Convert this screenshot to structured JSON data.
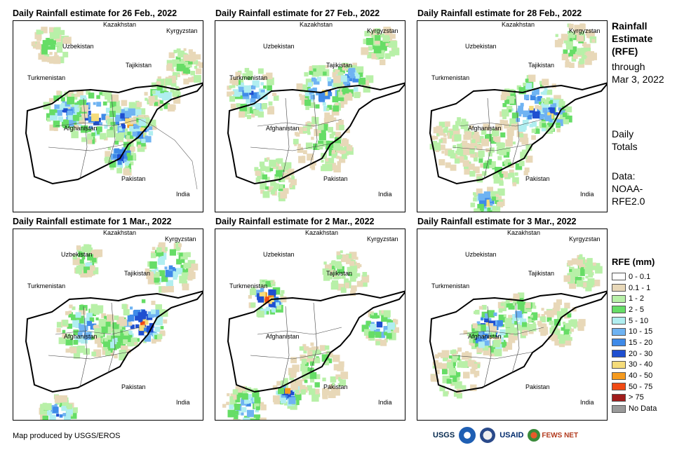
{
  "panels": [
    {
      "title": "Daily Rainfall estimate for 26 Feb., 2022"
    },
    {
      "title": "Daily Rainfall estimate for 27 Feb., 2022"
    },
    {
      "title": "Daily Rainfall estimate for 28 Feb., 2022"
    },
    {
      "title": "Daily Rainfall estimate for 1 Mar., 2022"
    },
    {
      "title": "Daily Rainfall estimate for 2 Mar., 2022"
    },
    {
      "title": "Daily Rainfall estimate for 3 Mar., 2022"
    }
  ],
  "map_labels": {
    "kazakhstan": "Kazakhstan",
    "kyrgyzstan": "Kyrgyzstan",
    "uzbekistan": "Uzbekistan",
    "tajikistan": "Tajikistan",
    "turkmenistan": "Turkmenistan",
    "afghanistan": "Afghanistan",
    "pakistan": "Pakistan",
    "india": "India"
  },
  "side": {
    "title_lines": [
      "Rainfall",
      "Estimate",
      "(RFE)"
    ],
    "through_lines": [
      "through",
      "Mar 3, 2022"
    ],
    "daily_lines": [
      "Daily",
      "Totals"
    ],
    "data_lines": [
      "Data:",
      "NOAA-",
      "RFE2.0"
    ]
  },
  "legend": {
    "title": "RFE (mm)",
    "items": [
      {
        "label": "0 - 0.1",
        "color": "#ffffff"
      },
      {
        "label": "0.1 - 1",
        "color": "#e8d8b8"
      },
      {
        "label": "1 - 2",
        "color": "#b8f0a8"
      },
      {
        "label": "2 - 5",
        "color": "#66dd66"
      },
      {
        "label": "5 - 10",
        "color": "#b0eef0"
      },
      {
        "label": "10 - 15",
        "color": "#6fb3f2"
      },
      {
        "label": "15 - 20",
        "color": "#3f8ae8"
      },
      {
        "label": "20 - 30",
        "color": "#1f4fd0"
      },
      {
        "label": "30 - 40",
        "color": "#f5dc7a"
      },
      {
        "label": "40 - 50",
        "color": "#f59a1e"
      },
      {
        "label": "50 - 75",
        "color": "#f04a14"
      },
      {
        "label": "> 75",
        "color": "#a01c1c"
      },
      {
        "label": "No Data",
        "color": "#9a9a9a"
      }
    ]
  },
  "footer": "Map produced by USGS/EROS",
  "logos": {
    "usgs": "USGS",
    "usaid": "USAID",
    "fewsnet": "FEWS NET"
  }
}
